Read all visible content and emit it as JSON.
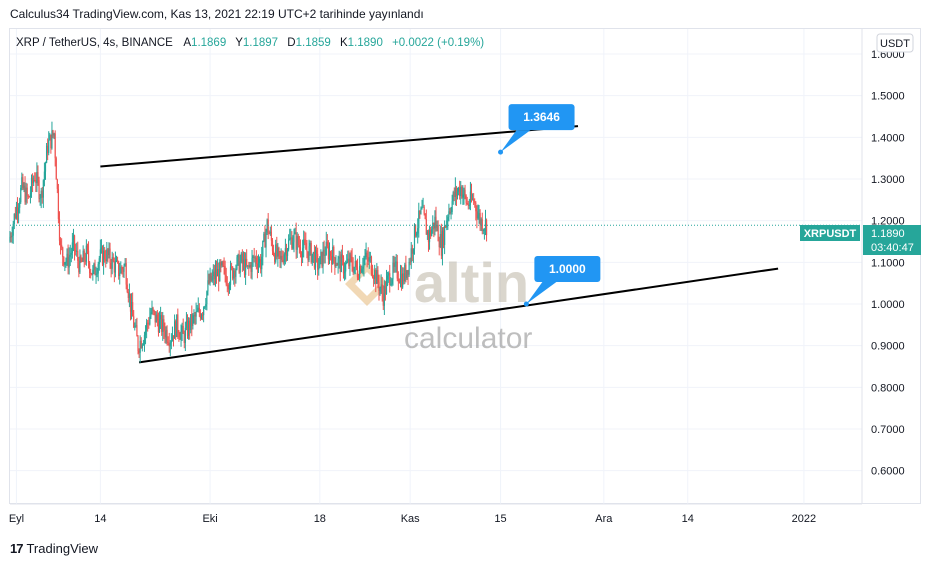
{
  "publish_header": "Calculus34 TradingView.com, Kas 13, 2021 22:19 UTC+2 tarihinde yayınlandı",
  "legend": {
    "symbol": "XRP / TetherUS, 4s, BINANCE",
    "open_label": "A",
    "open": "1.1869",
    "high_label": "Y",
    "high": "1.1897",
    "low_label": "D",
    "low": "1.1859",
    "close_label": "K",
    "close": "1.1890",
    "change": "+0.0022 (+0.19%)"
  },
  "currency_badge": "USDT",
  "last_price_tag": {
    "symbol": "XRPUSDT",
    "price": "1.1890",
    "countdown": "03:40:47"
  },
  "watermark": {
    "brand": "altin",
    "sub": "calculator"
  },
  "footer": {
    "brand": "TradingView"
  },
  "colors": {
    "up": "#26a69a",
    "down": "#ef5350",
    "callout": "#2196f3",
    "tag": "#26a69a",
    "grid": "#f0f3fa",
    "trendline": "#000000"
  },
  "chart_data": {
    "type": "candlestick",
    "symbol": "XRPUSDT",
    "interval": "4s",
    "ylim": [
      0.52,
      1.66
    ],
    "y_ticks": [
      "0.6000",
      "0.7000",
      "0.8000",
      "0.9000",
      "1.0000",
      "1.1000",
      "1.2000",
      "1.3000",
      "1.4000",
      "1.5000",
      "1.6000"
    ],
    "x_ticks": [
      "Eyl",
      "14",
      "Eki",
      "18",
      "Kas",
      "15",
      "Ara",
      "14",
      "2022"
    ],
    "x_tick_dates": [
      "2021-09-01",
      "2021-09-14",
      "2021-10-01",
      "2021-10-18",
      "2021-11-01",
      "2021-11-15",
      "2021-12-01",
      "2021-12-14",
      "2022-01-01"
    ],
    "xlim": [
      "2021-08-31",
      "2022-01-10"
    ],
    "last_price": 1.189,
    "trendlines": [
      {
        "start": [
          "2021-09-14",
          1.33
        ],
        "end": [
          "2021-11-27",
          1.427
        ]
      },
      {
        "start": [
          "2021-09-20",
          0.86
        ],
        "end": [
          "2021-12-28",
          1.085
        ]
      }
    ],
    "callouts": [
      {
        "label": "1.3646",
        "date": "2021-11-15",
        "value": 1.3646
      },
      {
        "label": "1.0000",
        "date": "2021-11-19",
        "value": 1.0
      }
    ],
    "price_path": [
      [
        "2021-08-31",
        1.15
      ],
      [
        "2021-09-01",
        1.22
      ],
      [
        "2021-09-02",
        1.28
      ],
      [
        "2021-09-03",
        1.25
      ],
      [
        "2021-09-04",
        1.31
      ],
      [
        "2021-09-05",
        1.26
      ],
      [
        "2021-09-06",
        1.38
      ],
      [
        "2021-09-07",
        1.41
      ],
      [
        "2021-09-08",
        1.13
      ],
      [
        "2021-09-09",
        1.1
      ],
      [
        "2021-09-10",
        1.14
      ],
      [
        "2021-09-11",
        1.09
      ],
      [
        "2021-09-12",
        1.12
      ],
      [
        "2021-09-13",
        1.07
      ],
      [
        "2021-09-14",
        1.11
      ],
      [
        "2021-09-15",
        1.12
      ],
      [
        "2021-09-16",
        1.1
      ],
      [
        "2021-09-17",
        1.08
      ],
      [
        "2021-09-18",
        1.09
      ],
      [
        "2021-09-19",
        0.98
      ],
      [
        "2021-09-20",
        0.9
      ],
      [
        "2021-09-21",
        0.93
      ],
      [
        "2021-09-22",
        0.98
      ],
      [
        "2021-09-23",
        0.96
      ],
      [
        "2021-09-24",
        0.94
      ],
      [
        "2021-09-25",
        0.92
      ],
      [
        "2021-09-26",
        0.95
      ],
      [
        "2021-09-27",
        0.92
      ],
      [
        "2021-09-28",
        0.95
      ],
      [
        "2021-09-29",
        0.97
      ],
      [
        "2021-09-30",
        0.99
      ],
      [
        "2021-10-01",
        1.05
      ],
      [
        "2021-10-02",
        1.07
      ],
      [
        "2021-10-03",
        1.08
      ],
      [
        "2021-10-04",
        1.06
      ],
      [
        "2021-10-05",
        1.09
      ],
      [
        "2021-10-06",
        1.1
      ],
      [
        "2021-10-07",
        1.08
      ],
      [
        "2021-10-08",
        1.11
      ],
      [
        "2021-10-09",
        1.1
      ],
      [
        "2021-10-10",
        1.19
      ],
      [
        "2021-10-11",
        1.13
      ],
      [
        "2021-10-12",
        1.1
      ],
      [
        "2021-10-13",
        1.14
      ],
      [
        "2021-10-14",
        1.16
      ],
      [
        "2021-10-15",
        1.14
      ],
      [
        "2021-10-16",
        1.13
      ],
      [
        "2021-10-17",
        1.12
      ],
      [
        "2021-10-18",
        1.09
      ],
      [
        "2021-10-19",
        1.13
      ],
      [
        "2021-10-20",
        1.12
      ],
      [
        "2021-10-21",
        1.1
      ],
      [
        "2021-10-22",
        1.09
      ],
      [
        "2021-10-23",
        1.1
      ],
      [
        "2021-10-24",
        1.08
      ],
      [
        "2021-10-25",
        1.11
      ],
      [
        "2021-10-26",
        1.1
      ],
      [
        "2021-10-27",
        1.06
      ],
      [
        "2021-10-28",
        1.02
      ],
      [
        "2021-10-29",
        1.07
      ],
      [
        "2021-10-30",
        1.08
      ],
      [
        "2021-10-31",
        1.06
      ],
      [
        "2021-11-01",
        1.1
      ],
      [
        "2021-11-02",
        1.18
      ],
      [
        "2021-11-03",
        1.22
      ],
      [
        "2021-11-04",
        1.16
      ],
      [
        "2021-11-05",
        1.2
      ],
      [
        "2021-11-06",
        1.14
      ],
      [
        "2021-11-07",
        1.22
      ],
      [
        "2021-11-08",
        1.26
      ],
      [
        "2021-11-09",
        1.28
      ],
      [
        "2021-11-10",
        1.24
      ],
      [
        "2021-11-11",
        1.25
      ],
      [
        "2021-11-12",
        1.2
      ],
      [
        "2021-11-13",
        1.189
      ]
    ]
  }
}
